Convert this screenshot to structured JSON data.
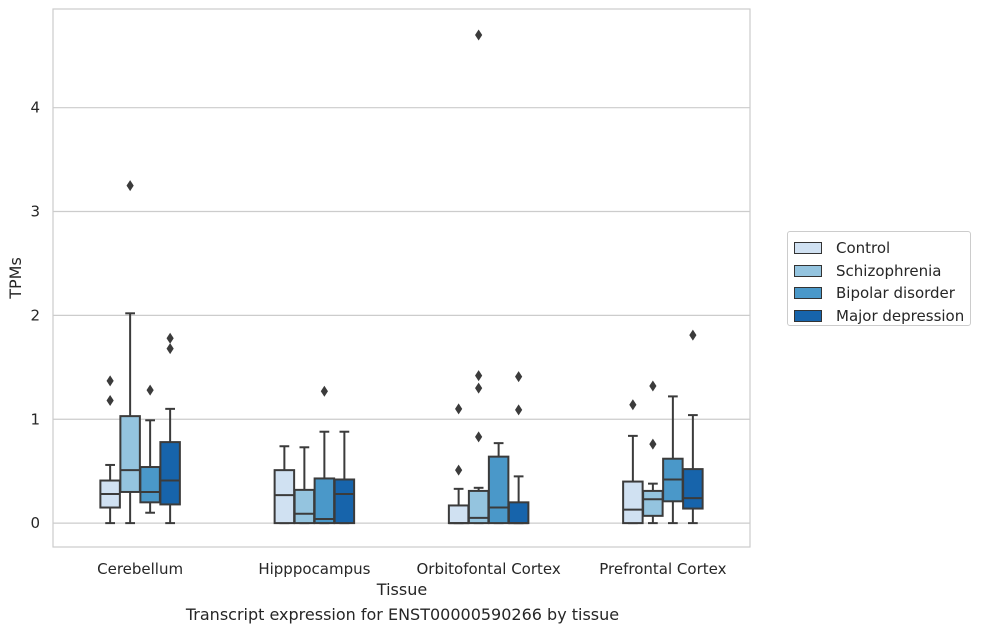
{
  "chart_data": {
    "type": "box",
    "xlabel": "Tissue",
    "ylabel": "TPMs",
    "caption": "Transcript expression for ENST00000590266 by tissue",
    "ylim": [
      -0.23,
      4.95
    ],
    "yticks": [
      0,
      1,
      2,
      3,
      4
    ],
    "grid": "horizontal",
    "legend_position": "right",
    "categories": [
      "Cerebellum",
      "Hipppocampus",
      "Orbitofontal Cortex",
      "Prefrontal Cortex"
    ],
    "series": [
      {
        "name": "Control",
        "color": "#d0e1f2",
        "boxes": [
          {
            "whisker_low": 0.0,
            "q1": 0.15,
            "median": 0.28,
            "q3": 0.41,
            "whisker_high": 0.56,
            "outliers": [
              1.18,
              1.37
            ]
          },
          {
            "whisker_low": 0.0,
            "q1": 0.0,
            "median": 0.27,
            "q3": 0.51,
            "whisker_high": 0.74,
            "outliers": []
          },
          {
            "whisker_low": 0.0,
            "q1": 0.0,
            "median": 0.0,
            "q3": 0.17,
            "whisker_high": 0.33,
            "outliers": [
              0.51,
              1.1
            ]
          },
          {
            "whisker_low": 0.0,
            "q1": 0.0,
            "median": 0.13,
            "q3": 0.4,
            "whisker_high": 0.84,
            "outliers": [
              1.14
            ]
          }
        ]
      },
      {
        "name": "Schizophrenia",
        "color": "#94c4df",
        "boxes": [
          {
            "whisker_low": 0.0,
            "q1": 0.3,
            "median": 0.51,
            "q3": 1.03,
            "whisker_high": 2.02,
            "outliers": [
              3.25
            ]
          },
          {
            "whisker_low": 0.0,
            "q1": 0.0,
            "median": 0.09,
            "q3": 0.32,
            "whisker_high": 0.73,
            "outliers": []
          },
          {
            "whisker_low": 0.0,
            "q1": 0.0,
            "median": 0.05,
            "q3": 0.31,
            "whisker_high": 0.34,
            "outliers": [
              0.83,
              1.3,
              1.42,
              4.7
            ]
          },
          {
            "whisker_low": 0.0,
            "q1": 0.07,
            "median": 0.23,
            "q3": 0.31,
            "whisker_high": 0.38,
            "outliers": [
              0.76,
              1.32
            ]
          }
        ]
      },
      {
        "name": "Bipolar disorder",
        "color": "#4a98c9",
        "boxes": [
          {
            "whisker_low": 0.1,
            "q1": 0.2,
            "median": 0.3,
            "q3": 0.54,
            "whisker_high": 0.99,
            "outliers": [
              1.28
            ]
          },
          {
            "whisker_low": 0.0,
            "q1": 0.0,
            "median": 0.04,
            "q3": 0.43,
            "whisker_high": 0.88,
            "outliers": [
              1.27
            ]
          },
          {
            "whisker_low": 0.0,
            "q1": 0.0,
            "median": 0.15,
            "q3": 0.64,
            "whisker_high": 0.77,
            "outliers": []
          },
          {
            "whisker_low": 0.0,
            "q1": 0.21,
            "median": 0.42,
            "q3": 0.62,
            "whisker_high": 1.22,
            "outliers": []
          }
        ]
      },
      {
        "name": "Major depression",
        "color": "#1764ab",
        "boxes": [
          {
            "whisker_low": 0.0,
            "q1": 0.18,
            "median": 0.41,
            "q3": 0.78,
            "whisker_high": 1.1,
            "outliers": [
              1.68,
              1.78
            ]
          },
          {
            "whisker_low": 0.0,
            "q1": 0.0,
            "median": 0.28,
            "q3": 0.42,
            "whisker_high": 0.88,
            "outliers": []
          },
          {
            "whisker_low": 0.0,
            "q1": 0.0,
            "median": 0.0,
            "q3": 0.2,
            "whisker_high": 0.45,
            "outliers": [
              1.09,
              1.41
            ]
          },
          {
            "whisker_low": 0.0,
            "q1": 0.14,
            "median": 0.24,
            "q3": 0.52,
            "whisker_high": 1.04,
            "outliers": [
              1.81
            ]
          }
        ]
      }
    ]
  }
}
